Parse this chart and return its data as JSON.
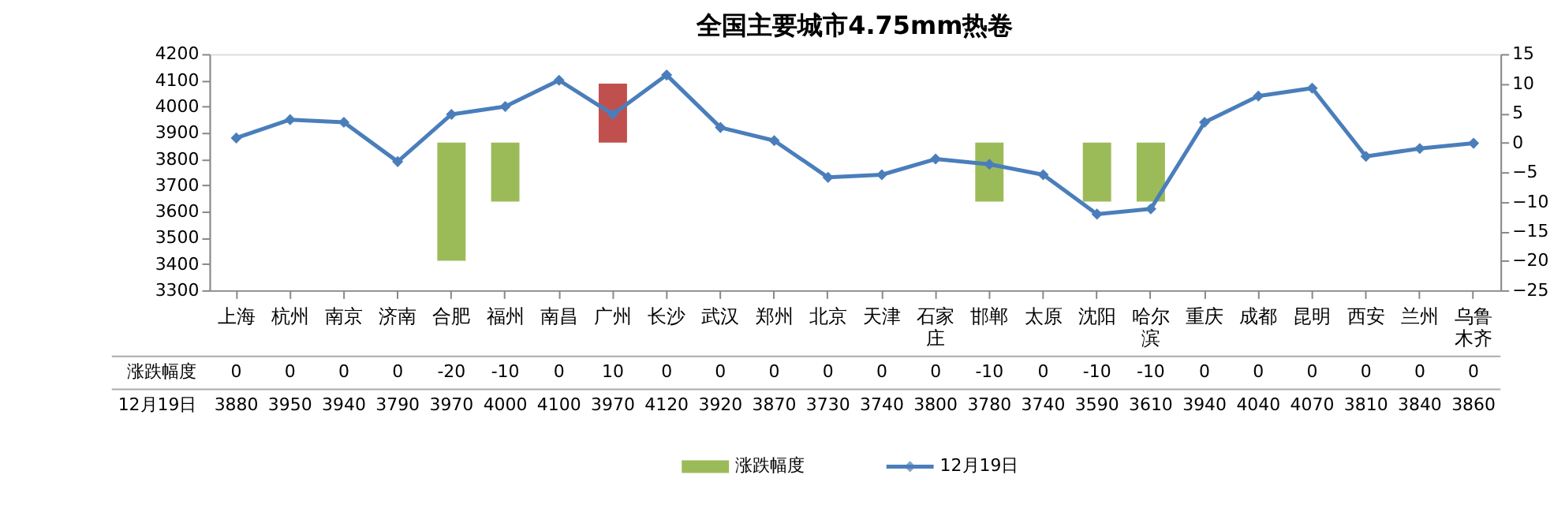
{
  "chart_data": {
    "type": "line",
    "title": "全国主要城市4.75mm热卷",
    "categories": [
      "上海",
      "杭州",
      "南京",
      "济南",
      "合肥",
      "福州",
      "南昌",
      "广州",
      "长沙",
      "武汉",
      "郑州",
      "北京",
      "天津",
      "石家庄",
      "邯郸",
      "太原",
      "沈阳",
      "哈尔滨",
      "重庆",
      "成都",
      "昆明",
      "西安",
      "兰州",
      "乌鲁木齐"
    ],
    "series": [
      {
        "name": "涨跌幅度",
        "type": "bar",
        "axis": "y2",
        "values": [
          0,
          0,
          0,
          0,
          -20,
          -10,
          0,
          10,
          0,
          0,
          0,
          0,
          0,
          0,
          -10,
          0,
          -10,
          -10,
          0,
          0,
          0,
          0,
          0,
          0
        ],
        "colors": [
          "#9bbb59",
          "#9bbb59",
          "#9bbb59",
          "#9bbb59",
          "#9bbb59",
          "#9bbb59",
          "#9bbb59",
          "#c0504d",
          "#9bbb59",
          "#9bbb59",
          "#9bbb59",
          "#9bbb59",
          "#9bbb59",
          "#9bbb59",
          "#9bbb59",
          "#9bbb59",
          "#9bbb59",
          "#9bbb59",
          "#9bbb59",
          "#9bbb59",
          "#9bbb59",
          "#9bbb59",
          "#9bbb59",
          "#9bbb59"
        ]
      },
      {
        "name": "12月19日",
        "color": "#4a7ebb",
        "values": [
          3880,
          3950,
          3940,
          3790,
          3970,
          4000,
          4100,
          3970,
          4120,
          3920,
          3870,
          3730,
          3740,
          3800,
          3780,
          3740,
          3590,
          3610,
          3940,
          4040,
          4070,
          3810,
          3840,
          3860
        ]
      }
    ],
    "ylim": [
      3300,
      4200
    ],
    "yticks": [
      3300,
      3400,
      3500,
      3600,
      3700,
      3800,
      3900,
      4000,
      4100,
      4200
    ],
    "y2lim": [
      -25,
      15
    ],
    "y2ticks": [
      -25,
      -20,
      -15,
      -10,
      -5,
      0,
      5,
      10,
      15
    ],
    "data_labels": true,
    "legend": "bottom",
    "marker": "diamond",
    "grid": false,
    "line_style": "solid"
  }
}
